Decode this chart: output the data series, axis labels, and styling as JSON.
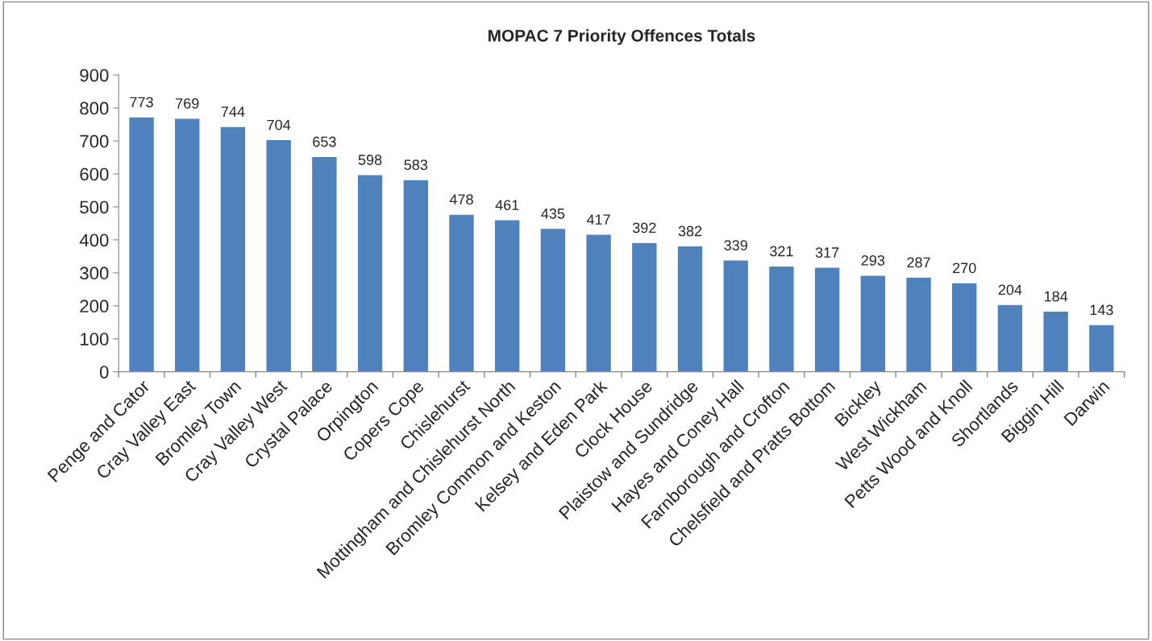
{
  "chart_data": {
    "type": "bar",
    "title": "MOPAC 7 Priority Offences Totals",
    "categories": [
      "Penge and Cator",
      "Cray Valley East",
      "Bromley Town",
      "Cray Valley West",
      "Crystal Palace",
      "Orpington",
      "Copers Cope",
      "Chislehurst",
      "Mottingham and Chislehurst North",
      "Bromley Common and Keston",
      "Kelsey and Eden Park",
      "Clock House",
      "Plaistow and Sundridge",
      "Hayes and Coney Hall",
      "Farnborough and Crofton",
      "Chelsfield and Pratts Bottom",
      "Bickley",
      "West Wickham",
      "Petts Wood and Knoll",
      "Shortlands",
      "Biggin Hill",
      "Darwin"
    ],
    "values": [
      773,
      769,
      744,
      704,
      653,
      598,
      583,
      478,
      461,
      435,
      417,
      392,
      382,
      339,
      321,
      317,
      293,
      287,
      270,
      204,
      184,
      143
    ],
    "color": "#4f81bd",
    "ylim": [
      0,
      900
    ],
    "yticks": [
      0,
      100,
      200,
      300,
      400,
      500,
      600,
      700,
      800,
      900
    ],
    "data_labels": true,
    "grid": false,
    "legend": false
  }
}
